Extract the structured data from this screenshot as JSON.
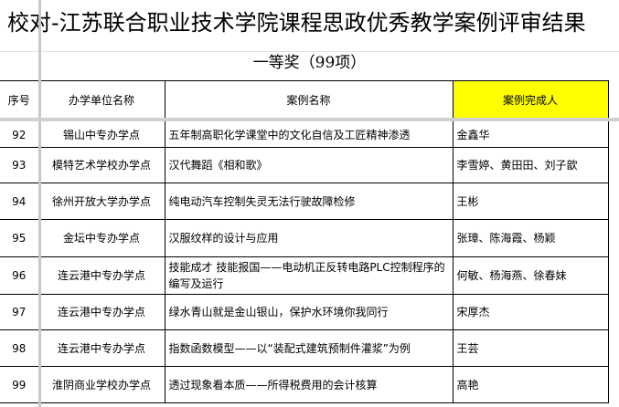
{
  "title": "校对-江苏联合职业技术学院课程思政优秀教学案例评审结果",
  "subtitle": "一等奖（99项）",
  "headers": [
    "序号",
    "办学单位名称",
    "案例名称",
    "案例完成人"
  ],
  "highlight_color": "#ffff00",
  "rows": [
    {
      "no": "92",
      "unit": "锡山中专办学点",
      "case": "五年制高职化学课堂中的文化自信及工匠精神渗透",
      "people": "金鑫华"
    },
    {
      "no": "93",
      "unit": "模特艺术学校办学点",
      "case": "汉代舞蹈《相和歌》",
      "people": "李雪婷、黄田田、刘子歆"
    },
    {
      "no": "94",
      "unit": "徐州开放大学办学点",
      "case": "纯电动汽车控制失灵无法行驶故障检修",
      "people": "王彬"
    },
    {
      "no": "95",
      "unit": "金坛中专办学点",
      "case": "汉服纹样的设计与应用",
      "people": "张璋、陈海霞、杨颖"
    },
    {
      "no": "96",
      "unit": "连云港中专办学点",
      "case": "技能成才 技能报国——电动机正反转电路PLC控制程序的编写及运行",
      "people": "何敏、杨海燕、徐春妹"
    },
    {
      "no": "97",
      "unit": "连云港中专办学点",
      "case": "绿水青山就是金山银山，保护水环境你我同行",
      "people": "宋厚杰"
    },
    {
      "no": "98",
      "unit": "连云港中专办学点",
      "case": "指数函数模型——以“装配式建筑预制件灌浆”为例",
      "people": "王芸"
    },
    {
      "no": "99",
      "unit": "淮阴商业学校办学点",
      "case": "透过现象看本质——所得税费用的会计核算",
      "people": "高艳"
    }
  ]
}
